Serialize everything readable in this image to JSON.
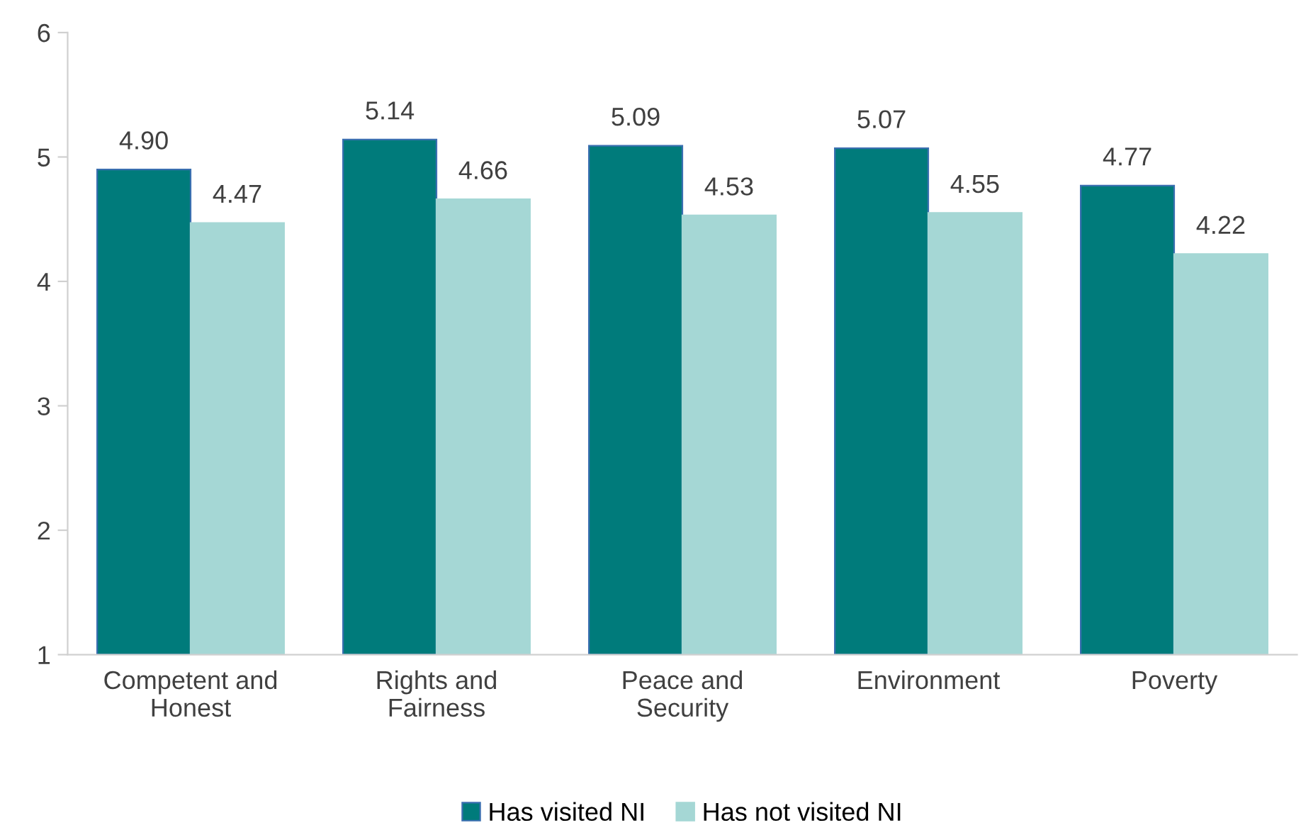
{
  "chart_data": {
    "type": "bar",
    "categories": [
      "Competent and\nHonest",
      "Rights and\nFairness",
      "Peace and\nSecurity",
      "Environment",
      "Poverty"
    ],
    "series": [
      {
        "name": "Has visited NI",
        "color": "#007b7b",
        "values": [
          4.9,
          5.14,
          5.09,
          5.07,
          4.77
        ],
        "value_labels": [
          "4.90",
          "5.14",
          "5.09",
          "5.07",
          "4.77"
        ]
      },
      {
        "name": "Has not visited NI",
        "color": "#a5d7d5",
        "values": [
          4.47,
          4.66,
          4.53,
          4.55,
          4.22
        ],
        "value_labels": [
          "4.47",
          "4.66",
          "4.53",
          "4.55",
          "4.22"
        ]
      }
    ],
    "ylim": [
      1,
      6
    ],
    "yticks": [
      1,
      2,
      3,
      4,
      5,
      6
    ],
    "grid": false,
    "legend": "bottom"
  }
}
